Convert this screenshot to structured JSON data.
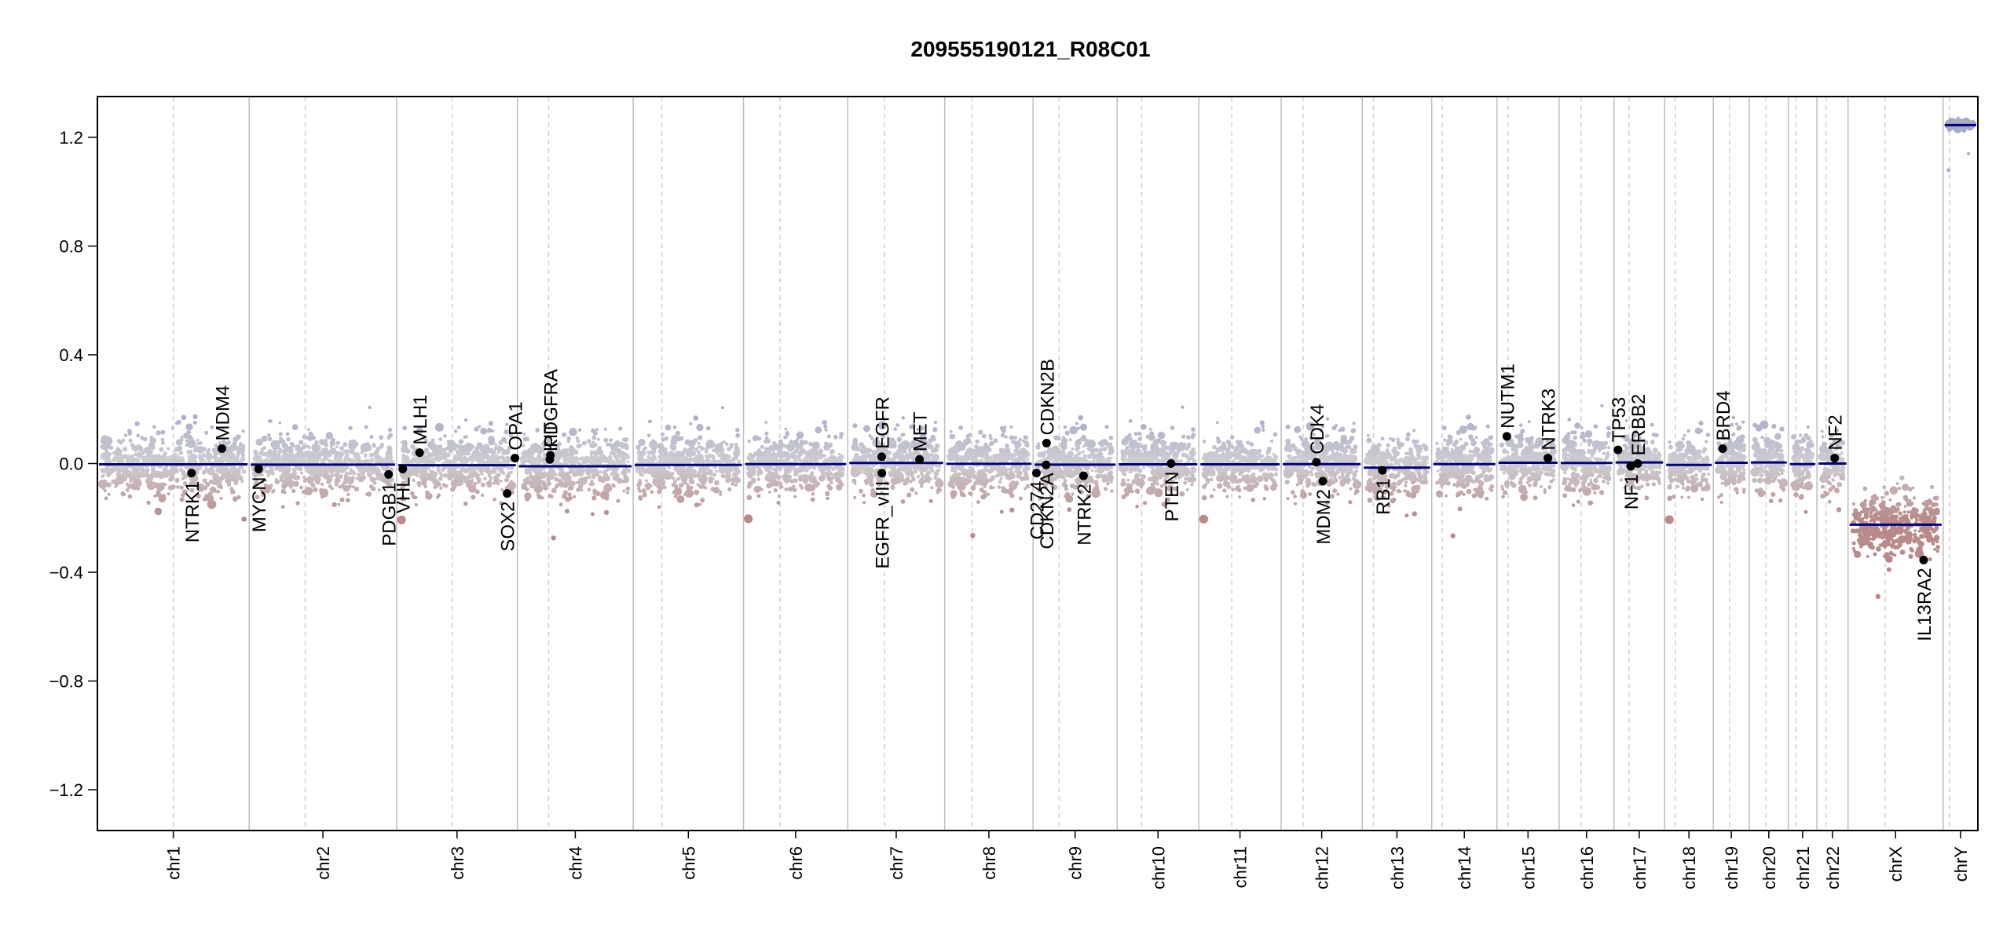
{
  "chart_data": {
    "type": "scatter",
    "title": "209555190121_R08C01",
    "xlabel": "",
    "ylabel": "",
    "ylim": [
      -1.35,
      1.35
    ],
    "y_ticks": [
      -1.2,
      -0.8,
      -0.4,
      0.0,
      0.4,
      0.8,
      1.2
    ],
    "y_tick_labels": [
      "−1.2",
      "−0.8",
      "−0.4",
      "0.0",
      "0.4",
      "0.8",
      "1.2"
    ],
    "colors": {
      "gain": "#a7a9c9",
      "loss": "#b98a8a",
      "segment": "#00007a",
      "gene_point": "#000000",
      "chrom_border": "#bdbdbd",
      "centromere": "#cfcfcf",
      "frame": "#000000"
    },
    "chromosomes": [
      {
        "name": "chr1",
        "label": "chr1",
        "length": 249,
        "centromere": 0.5,
        "seg": -0.003
      },
      {
        "name": "chr2",
        "label": "chr2",
        "length": 242,
        "centromere": 0.38,
        "seg": -0.004
      },
      {
        "name": "chr3",
        "label": "chr3",
        "length": 198,
        "centromere": 0.46,
        "seg": -0.006
      },
      {
        "name": "chr4",
        "label": "chr4",
        "length": 190,
        "centromere": 0.27,
        "seg": -0.01
      },
      {
        "name": "chr5",
        "label": "chr5",
        "length": 181,
        "centromere": 0.26,
        "seg": -0.005
      },
      {
        "name": "chr6",
        "label": "chr6",
        "length": 171,
        "centromere": 0.35,
        "seg": -0.002
      },
      {
        "name": "chr7",
        "label": "chr7",
        "length": 159,
        "centromere": 0.38,
        "seg": 0.002
      },
      {
        "name": "chr8",
        "label": "chr8",
        "length": 145,
        "centromere": 0.31,
        "seg": -0.001
      },
      {
        "name": "chr9",
        "label": "chr9",
        "length": 138,
        "centromere": 0.31,
        "seg": -0.004
      },
      {
        "name": "chr10",
        "label": "chr10",
        "length": 134,
        "centromere": 0.3,
        "seg": -0.003
      },
      {
        "name": "chr11",
        "label": "chr11",
        "length": 135,
        "centromere": 0.4,
        "seg": -0.003
      },
      {
        "name": "chr12",
        "label": "chr12",
        "length": 133,
        "centromere": 0.27,
        "seg": -0.002
      },
      {
        "name": "chr13",
        "label": "chr13",
        "length": 114,
        "centromere": 0.16,
        "seg": -0.015
      },
      {
        "name": "chr14",
        "label": "chr14",
        "length": 107,
        "centromere": 0.16,
        "seg": -0.002
      },
      {
        "name": "chr15",
        "label": "chr15",
        "length": 102,
        "centromere": 0.18,
        "seg": 0.003
      },
      {
        "name": "chr16",
        "label": "chr16",
        "length": 90,
        "centromere": 0.4,
        "seg": 0.002
      },
      {
        "name": "chr17",
        "label": "chr17",
        "length": 83,
        "centromere": 0.3,
        "seg": 0.004
      },
      {
        "name": "chr18",
        "label": "chr18",
        "length": 80,
        "centromere": 0.22,
        "seg": -0.005
      },
      {
        "name": "chr19",
        "label": "chr19",
        "length": 59,
        "centromere": 0.45,
        "seg": 0.003
      },
      {
        "name": "chr20",
        "label": "chr20",
        "length": 64,
        "centromere": 0.43,
        "seg": 0.004
      },
      {
        "name": "chr21",
        "label": "chr21",
        "length": 47,
        "centromere": 0.27,
        "seg": -0.002
      },
      {
        "name": "chr22",
        "label": "chr22",
        "length": 51,
        "centromere": 0.29,
        "seg": 0.0
      },
      {
        "name": "chrX",
        "label": "chrX",
        "length": 156,
        "centromere": 0.39,
        "seg": -0.225
      },
      {
        "name": "chrY",
        "label": "chrY",
        "length": 57,
        "centromere": 0.18,
        "seg": 1.245
      }
    ],
    "genes": [
      {
        "name": "NTRK1",
        "chrom": "chr1",
        "pos": 0.62,
        "value": -0.035,
        "side": "below"
      },
      {
        "name": "MDM4",
        "chrom": "chr1",
        "pos": 0.82,
        "value": 0.055,
        "side": "above"
      },
      {
        "name": "MYCN",
        "chrom": "chr2",
        "pos": 0.064,
        "value": -0.02,
        "side": "below"
      },
      {
        "name": "PDGB1",
        "chrom": "chr2",
        "pos": 0.945,
        "value": -0.04,
        "side": "below"
      },
      {
        "name": "VHL",
        "chrom": "chr3",
        "pos": 0.05,
        "value": -0.02,
        "side": "below"
      },
      {
        "name": "MLH1",
        "chrom": "chr3",
        "pos": 0.19,
        "value": 0.04,
        "side": "above"
      },
      {
        "name": "SOX2",
        "chrom": "chr3",
        "pos": 0.915,
        "value": -0.11,
        "side": "below"
      },
      {
        "name": "OPA1",
        "chrom": "chr3",
        "pos": 0.98,
        "value": 0.02,
        "side": "above"
      },
      {
        "name": "KIT",
        "chrom": "chr4",
        "pos": 0.28,
        "value": 0.015,
        "side": "above"
      },
      {
        "name": "PDGFRA",
        "chrom": "chr4",
        "pos": 0.285,
        "value": 0.03,
        "side": "above"
      },
      {
        "name": "EGFR",
        "chrom": "chr7",
        "pos": 0.35,
        "value": 0.025,
        "side": "above"
      },
      {
        "name": "EGFR_vIII",
        "chrom": "chr7",
        "pos": 0.352,
        "value": -0.035,
        "side": "below"
      },
      {
        "name": "MET",
        "chrom": "chr7",
        "pos": 0.74,
        "value": 0.015,
        "side": "above"
      },
      {
        "name": "CD274",
        "chrom": "chr9",
        "pos": 0.04,
        "value": -0.035,
        "side": "below"
      },
      {
        "name": "CDKN2A",
        "chrom": "chr9",
        "pos": 0.155,
        "value": -0.005,
        "side": "below"
      },
      {
        "name": "CDKN2B",
        "chrom": "chr9",
        "pos": 0.16,
        "value": 0.075,
        "side": "above"
      },
      {
        "name": "NTRK2",
        "chrom": "chr9",
        "pos": 0.6,
        "value": -0.045,
        "side": "below"
      },
      {
        "name": "PTEN",
        "chrom": "chr10",
        "pos": 0.66,
        "value": 0.0,
        "side": "below"
      },
      {
        "name": "CDK4",
        "chrom": "chr12",
        "pos": 0.435,
        "value": 0.005,
        "side": "above"
      },
      {
        "name": "MDM2",
        "chrom": "chr12",
        "pos": 0.515,
        "value": -0.065,
        "side": "below"
      },
      {
        "name": "RB1",
        "chrom": "chr13",
        "pos": 0.29,
        "value": -0.025,
        "side": "below"
      },
      {
        "name": "NUTM1",
        "chrom": "chr15",
        "pos": 0.16,
        "value": 0.1,
        "side": "above"
      },
      {
        "name": "NTRK3",
        "chrom": "chr15",
        "pos": 0.82,
        "value": 0.02,
        "side": "above"
      },
      {
        "name": "TP53",
        "chrom": "chr17",
        "pos": 0.08,
        "value": 0.05,
        "side": "above"
      },
      {
        "name": "NF1",
        "chrom": "chr17",
        "pos": 0.33,
        "value": -0.01,
        "side": "below"
      },
      {
        "name": "ERBB2",
        "chrom": "chr17",
        "pos": 0.47,
        "value": 0.0,
        "side": "above"
      },
      {
        "name": "BRD4",
        "chrom": "chr19",
        "pos": 0.26,
        "value": 0.055,
        "side": "above"
      },
      {
        "name": "NF2",
        "chrom": "chr22",
        "pos": 0.57,
        "value": 0.02,
        "side": "above"
      },
      {
        "name": "IL13RA2",
        "chrom": "chrX",
        "pos": 0.795,
        "value": -0.355,
        "side": "below"
      }
    ]
  }
}
